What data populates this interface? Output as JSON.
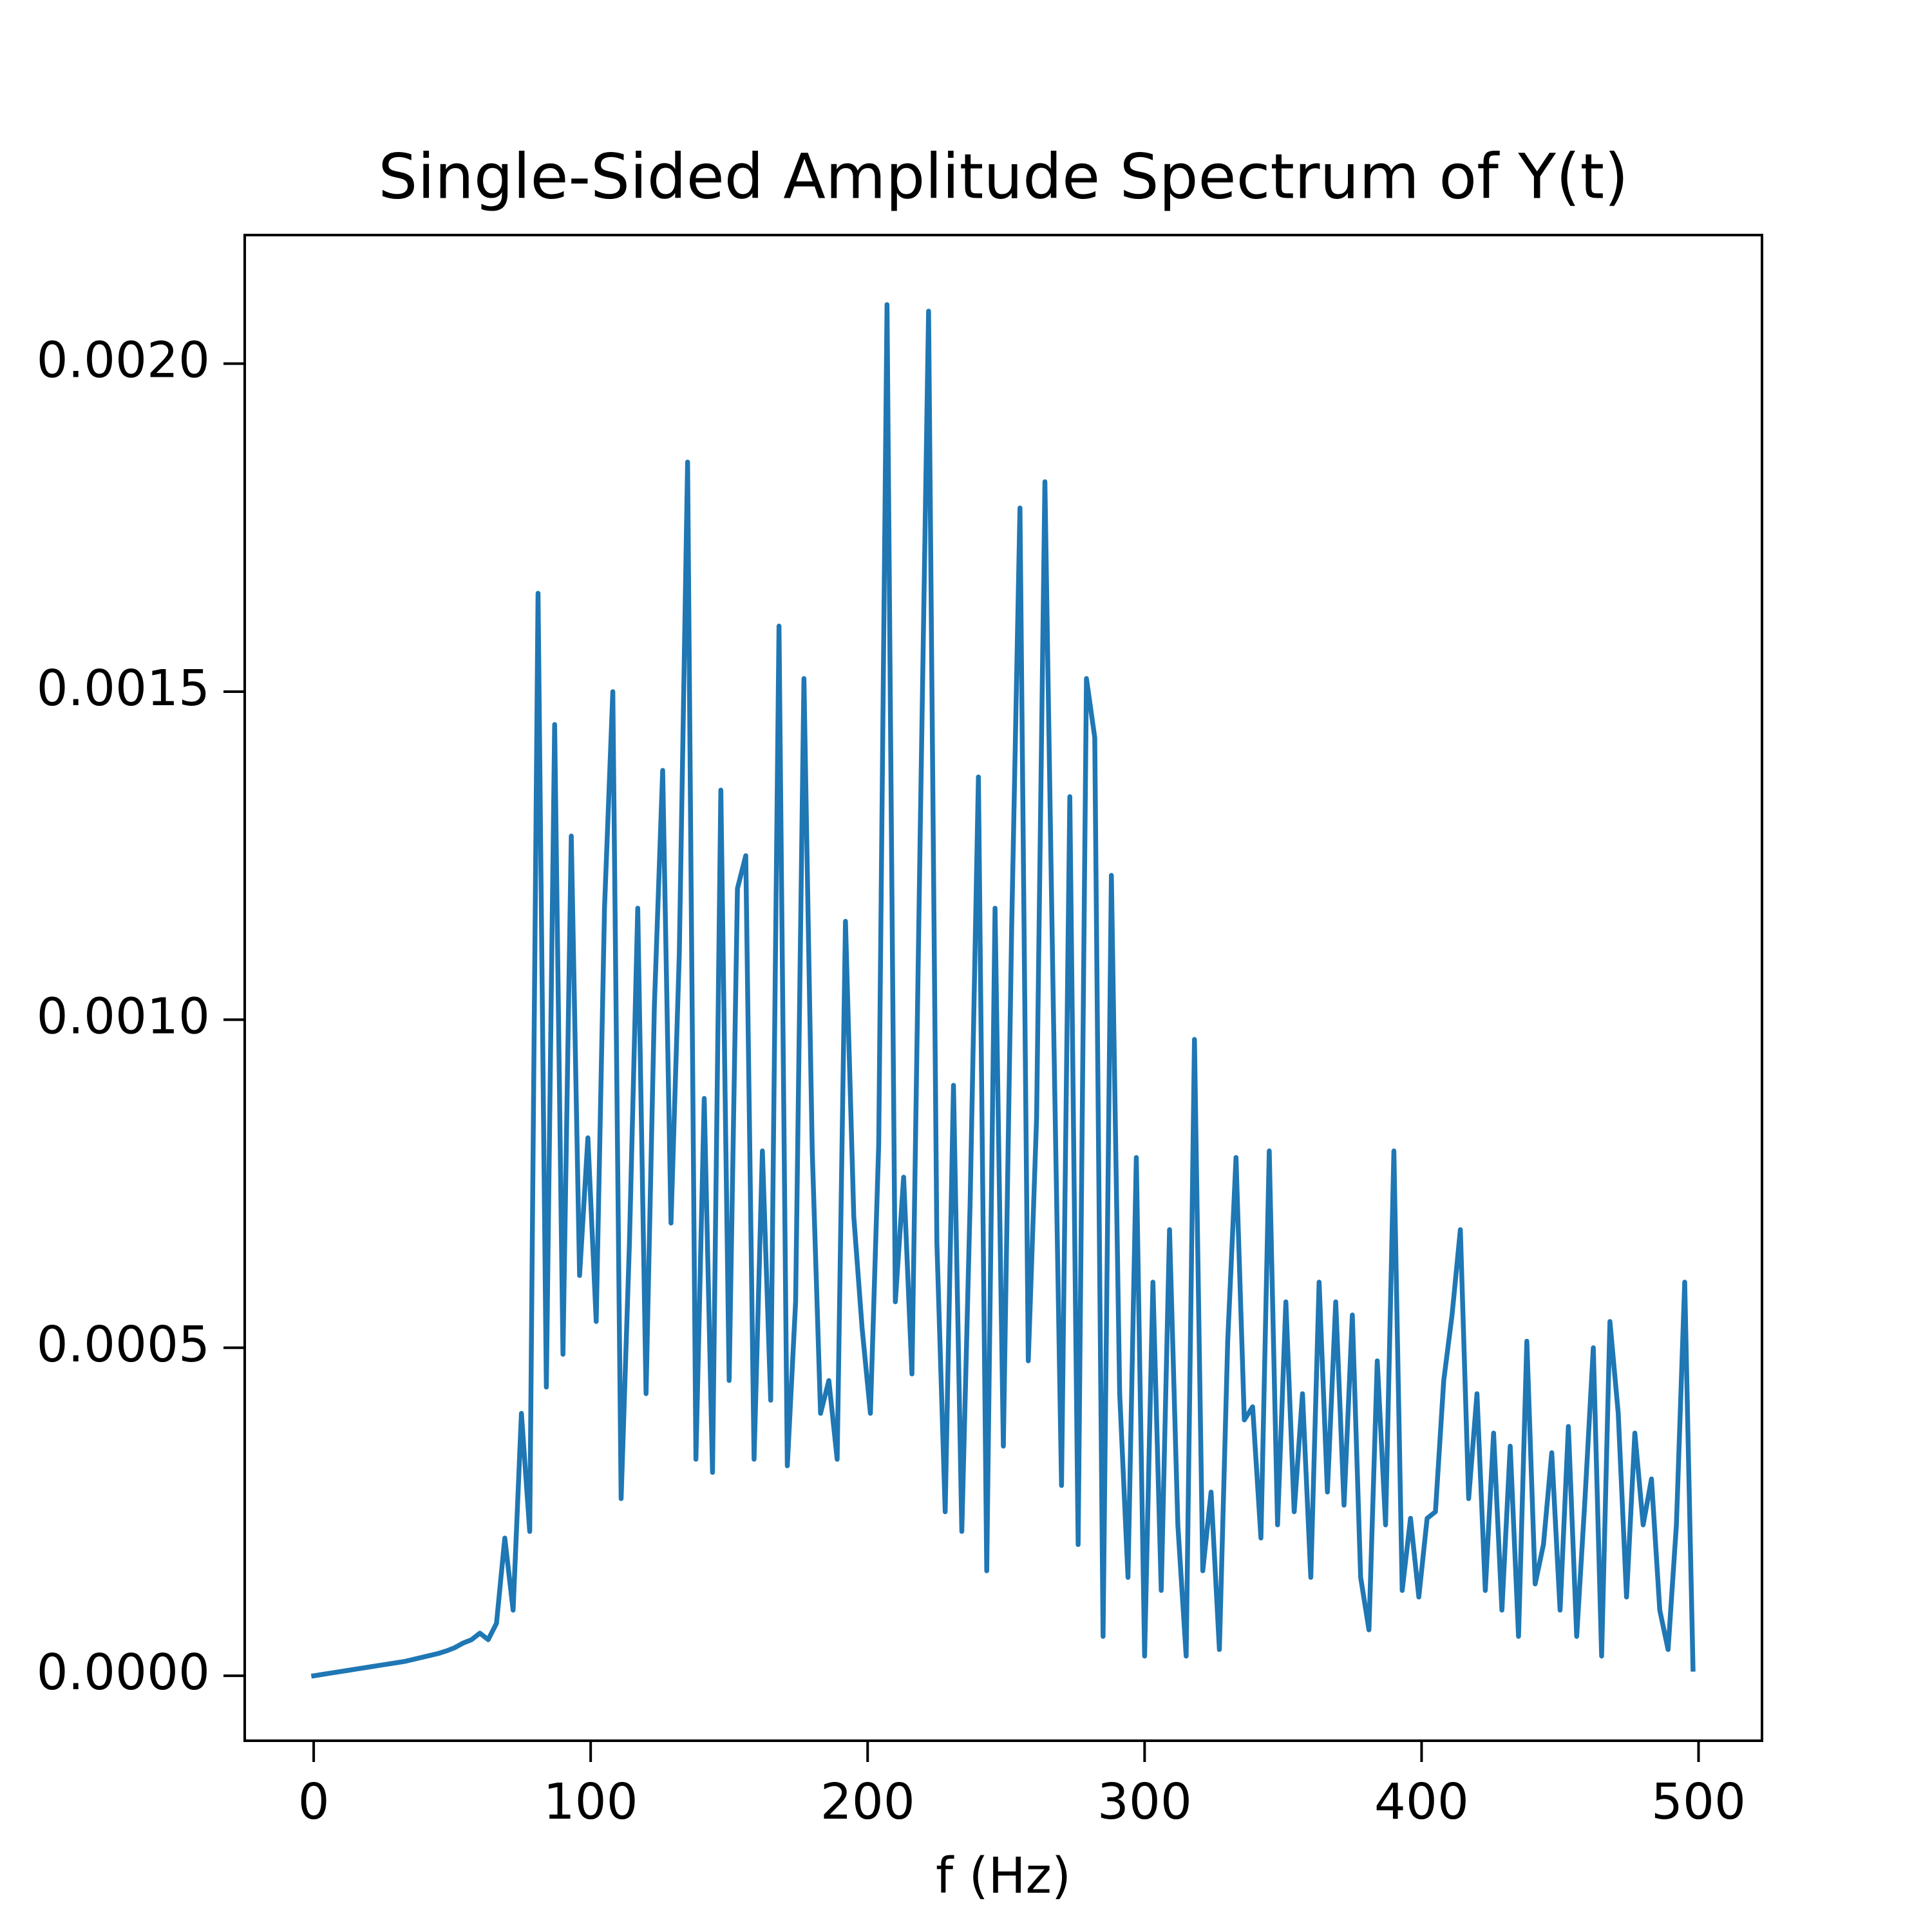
{
  "chart_data": {
    "type": "line",
    "title": "Single-Sided Amplitude Spectrum of Y(t)",
    "x_label": "f (Hz)",
    "color": "#1f77b4",
    "x": [
      0,
      3,
      6,
      9,
      12,
      15,
      18,
      21,
      24,
      27,
      30,
      33,
      36,
      39,
      42,
      45,
      48,
      51,
      54,
      57,
      60,
      63,
      66,
      69,
      72,
      75,
      78,
      81,
      84,
      87,
      90,
      93,
      96,
      99,
      102,
      105,
      108,
      111,
      114,
      117,
      120,
      123,
      126,
      129,
      132,
      135,
      138,
      141,
      144,
      147,
      150,
      153,
      156,
      159,
      162,
      165,
      168,
      171,
      174,
      177,
      180,
      183,
      186,
      189,
      192,
      195,
      198,
      201,
      204,
      207,
      210,
      213,
      216,
      219,
      222,
      225,
      228,
      231,
      234,
      237,
      240,
      243,
      246,
      249,
      252,
      255,
      258,
      261,
      264,
      267,
      270,
      273,
      276,
      279,
      282,
      285,
      288,
      291,
      294,
      297,
      300,
      303,
      306,
      309,
      312,
      315,
      318,
      321,
      324,
      327,
      330,
      333,
      336,
      339,
      342,
      345,
      348,
      351,
      354,
      357,
      360,
      363,
      366,
      369,
      372,
      375,
      378,
      381,
      384,
      387,
      390,
      393,
      396,
      399,
      402,
      405,
      408,
      411,
      414,
      417,
      420,
      423,
      426,
      429,
      432,
      435,
      438,
      441,
      444,
      447,
      450,
      453,
      456,
      459,
      462,
      465,
      468,
      471,
      474,
      477,
      480,
      483,
      486,
      489,
      492,
      495,
      498
    ],
    "values": [
      0,
      2e-06,
      4e-06,
      6e-06,
      8e-06,
      1e-05,
      1.2e-05,
      1.4e-05,
      1.6e-05,
      1.8e-05,
      2e-05,
      2.2e-05,
      2.5e-05,
      2.8e-05,
      3.1e-05,
      3.4e-05,
      3.8e-05,
      4.3e-05,
      5e-05,
      5.5e-05,
      6.5e-05,
      5.5e-05,
      8e-05,
      0.00021,
      0.0001,
      0.0004,
      0.00022,
      0.00165,
      0.00044,
      0.00145,
      0.00049,
      0.00128,
      0.00061,
      0.00082,
      0.00054,
      0.00117,
      0.0015,
      0.00027,
      0.00066,
      0.00117,
      0.00043,
      0.00102,
      0.00138,
      0.00069,
      0.0011,
      0.00185,
      0.00033,
      0.00088,
      0.00031,
      0.00135,
      0.00045,
      0.0012,
      0.00125,
      0.00033,
      0.0008,
      0.00042,
      0.0016,
      0.00032,
      0.00057,
      0.00152,
      0.0008,
      0.0004,
      0.00045,
      0.00033,
      0.00115,
      0.0007,
      0.00053,
      0.0004,
      0.00081,
      0.00209,
      0.00057,
      0.00076,
      0.00046,
      0.00129,
      0.00208,
      0.00066,
      0.00025,
      0.0009,
      0.00022,
      0.00072,
      0.00137,
      0.00016,
      0.00117,
      0.00035,
      0.00114,
      0.00178,
      0.00048,
      0.00085,
      0.00182,
      0.00103,
      0.00029,
      0.00134,
      0.0002,
      0.00152,
      0.00143,
      6e-05,
      0.00122,
      0.00043,
      0.00015,
      0.00079,
      3e-05,
      0.0006,
      0.00013,
      0.00068,
      0.00023,
      3e-05,
      0.00097,
      0.00016,
      0.00028,
      4e-05,
      0.00051,
      0.00079,
      0.00039,
      0.00041,
      0.00021,
      0.0008,
      0.00023,
      0.00057,
      0.00025,
      0.00043,
      0.00015,
      0.0006,
      0.00028,
      0.00057,
      0.00026,
      0.00055,
      0.00015,
      7e-05,
      0.00048,
      0.00023,
      0.0008,
      0.00013,
      0.00024,
      0.00012,
      0.00024,
      0.00025,
      0.00045,
      0.00055,
      0.00068,
      0.00027,
      0.00043,
      0.00013,
      0.00037,
      0.0001,
      0.00035,
      6e-05,
      0.00051,
      0.00014,
      0.0002,
      0.00034,
      0.0001,
      0.00038,
      6e-05,
      0.00027,
      0.0005,
      3e-05,
      0.00054,
      0.0004,
      0.00012,
      0.00037,
      0.00023,
      0.0003,
      0.0001,
      4e-05,
      0.00023,
      0.0006,
      1e-05
    ],
    "xlim": [
      -24.9,
      522.9
    ],
    "ylim": [
      -9.9e-05,
      0.002196
    ],
    "xticks": [
      0,
      100,
      200,
      300,
      400,
      500
    ],
    "yticks": [
      {
        "value": 0,
        "label": "0.0000"
      },
      {
        "value": 0.0005,
        "label": "0.0005"
      },
      {
        "value": 0.001,
        "label": "0.0010"
      },
      {
        "value": 0.0015,
        "label": "0.0015"
      },
      {
        "value": 0.002,
        "label": "0.0020"
      }
    ]
  }
}
